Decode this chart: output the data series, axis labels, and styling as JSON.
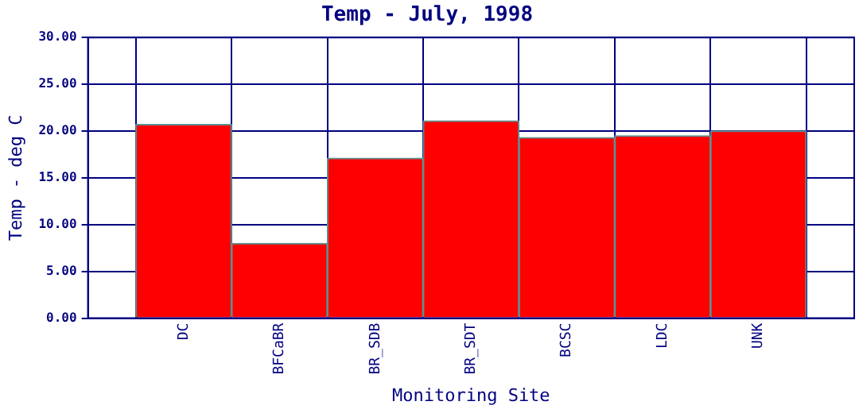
{
  "chart_data": {
    "type": "bar",
    "title": "Temp - July, 1998",
    "xlabel": "Monitoring Site",
    "ylabel": "Temp - deg C",
    "categories": [
      "DC",
      "BFCaBR",
      "BR_SDB",
      "BR_SDT",
      "BCSC",
      "LDC",
      "UNK"
    ],
    "values": [
      20.7,
      8.0,
      17.1,
      21.1,
      19.3,
      19.5,
      20.0
    ],
    "color": "#ff0000",
    "ylim": [
      0,
      30
    ],
    "yticks": [
      {
        "value": 0,
        "label": "0.00"
      },
      {
        "value": 5,
        "label": "5.00"
      },
      {
        "value": 10,
        "label": "10.00"
      },
      {
        "value": 15,
        "label": "15.00"
      },
      {
        "value": 20,
        "label": "20.00"
      },
      {
        "value": 25,
        "label": "25.00"
      },
      {
        "value": 30,
        "label": "30.00"
      }
    ],
    "grid": true,
    "legend": false
  }
}
